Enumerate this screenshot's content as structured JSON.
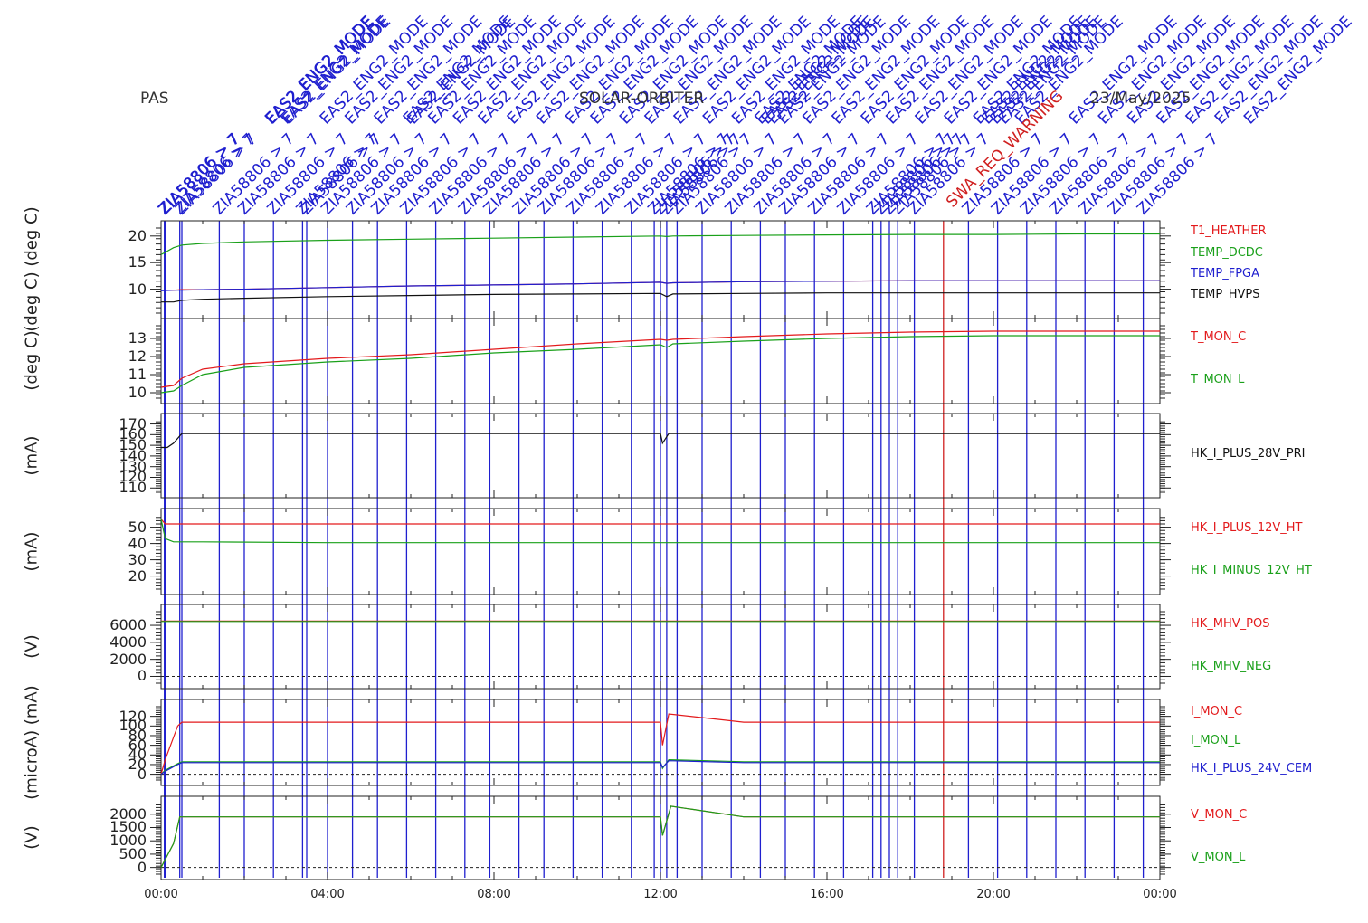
{
  "header": {
    "instrument": "PAS",
    "mission": "SOLAR-ORBITER",
    "date": "23/May/2025"
  },
  "event_label_texts": {
    "cmd": "ZIA58806 > 7",
    "mode": "EAS2_ENG2_MODE",
    "warning": "SWA_REQ_WARNING"
  },
  "colors": {
    "red": "#e31a1c",
    "green": "#1aa01a",
    "blue": "#1f1fcf",
    "black": "#111111",
    "event_blue": "#1f1fcf",
    "event_red": "#d02020"
  },
  "chart_data": [
    {
      "type": "line",
      "panel": "temperatures",
      "ylabel": "(deg C) (deg C)",
      "yticks": [
        10,
        15,
        20
      ],
      "ylim": [
        5.5,
        21.5
      ],
      "x_hours": [
        0.0,
        0.3,
        0.5,
        1,
        2,
        4,
        6,
        8,
        10,
        12,
        12.15,
        12.3,
        14,
        16,
        18,
        20,
        22,
        24
      ],
      "series": [
        {
          "name": "T1_HEATHER",
          "color": "red",
          "values": [
            9.8,
            9.8,
            9.9,
            9.9,
            10.0,
            10.3,
            10.6,
            10.8,
            11.0,
            11.3,
            11.1,
            11.2,
            11.4,
            11.5,
            11.6,
            11.6,
            11.6,
            11.6
          ]
        },
        {
          "name": "TEMP_DCDC",
          "color": "green",
          "values": [
            16.5,
            17.8,
            18.3,
            18.6,
            18.9,
            19.2,
            19.4,
            19.6,
            19.8,
            20.0,
            19.9,
            20.0,
            20.1,
            20.2,
            20.3,
            20.3,
            20.4,
            20.4
          ]
        },
        {
          "name": "TEMP_FPGA",
          "color": "blue",
          "values": [
            9.7,
            9.8,
            9.8,
            9.9,
            10.0,
            10.3,
            10.6,
            10.8,
            11.0,
            11.3,
            11.1,
            11.2,
            11.4,
            11.5,
            11.6,
            11.6,
            11.6,
            11.6
          ]
        },
        {
          "name": "TEMP_HVPS",
          "color": "black",
          "values": [
            7.6,
            7.6,
            7.9,
            8.1,
            8.3,
            8.6,
            8.8,
            9.0,
            9.1,
            9.2,
            8.6,
            9.1,
            9.2,
            9.3,
            9.3,
            9.3,
            9.3,
            9.3
          ]
        }
      ]
    },
    {
      "type": "line",
      "panel": "sensor-temperatures",
      "ylabel": "(deg C)",
      "yticks": [
        10,
        11,
        12,
        13
      ],
      "ylim": [
        9.7,
        13.7
      ],
      "x_hours": [
        0.0,
        0.3,
        0.5,
        1,
        2,
        4,
        6,
        8,
        10,
        12,
        12.15,
        12.3,
        14,
        16,
        18,
        20,
        22,
        24
      ],
      "series": [
        {
          "name": "T_MON_C",
          "color": "red",
          "values": [
            10.3,
            10.4,
            10.8,
            11.3,
            11.6,
            11.9,
            12.1,
            12.4,
            12.7,
            12.95,
            12.9,
            12.95,
            13.1,
            13.25,
            13.35,
            13.4,
            13.4,
            13.4
          ]
        },
        {
          "name": "T_MON_L",
          "color": "green",
          "values": [
            10.0,
            10.1,
            10.4,
            11.0,
            11.4,
            11.7,
            11.9,
            12.2,
            12.4,
            12.65,
            12.5,
            12.7,
            12.85,
            13.0,
            13.1,
            13.15,
            13.15,
            13.15
          ]
        }
      ]
    },
    {
      "type": "line",
      "panel": "primary-current",
      "ylabel": "(mA)",
      "yticks": [
        110,
        120,
        130,
        140,
        150,
        160,
        170
      ],
      "ylim": [
        106,
        173
      ],
      "x_hours": [
        0.0,
        0.15,
        0.3,
        0.5,
        2,
        6,
        10,
        12,
        12.05,
        12.2,
        14,
        18,
        24
      ],
      "series": [
        {
          "name": "HK_I_PLUS_28V_PRI",
          "color": "black",
          "values": [
            148,
            148,
            152,
            161,
            161,
            161,
            161,
            161,
            152,
            161,
            161,
            161,
            161
          ]
        }
      ]
    },
    {
      "type": "line",
      "panel": "heater-currents",
      "ylabel": "(mA)",
      "yticks": [
        20,
        30,
        40,
        50
      ],
      "ylim": [
        12,
        57
      ],
      "x_hours": [
        0.0,
        0.1,
        0.3,
        1,
        4,
        8,
        12,
        12.2,
        14,
        18,
        24
      ],
      "series": [
        {
          "name": "HK_I_PLUS_12V_HT",
          "color": "red",
          "values": [
            55,
            52,
            52,
            52,
            52,
            52,
            52,
            52,
            52,
            52,
            52
          ]
        },
        {
          "name": "HK_I_MINUS_12V_HT",
          "color": "green",
          "values": [
            55,
            43,
            41,
            41,
            40.5,
            40.5,
            40.5,
            40.5,
            40.5,
            40.5,
            40.5
          ]
        }
      ]
    },
    {
      "type": "line",
      "panel": "mcp-high-voltage",
      "ylabel": "(V)",
      "yticks": [
        0,
        2000,
        4000,
        6000
      ],
      "ylim": [
        -800,
        7600
      ],
      "x_hours": [
        0.0,
        24.0
      ],
      "series": [
        {
          "name": "HK_MHV_POS",
          "color": "red",
          "values": [
            6500,
            6500
          ]
        },
        {
          "name": "HK_MHV_NEG",
          "color": "green",
          "values": [
            6450,
            6450
          ]
        }
      ]
    },
    {
      "type": "line",
      "panel": "monitor-currents",
      "ylabel": "(microA) (mA)",
      "yticks": [
        0,
        20,
        40,
        60,
        80,
        100,
        120
      ],
      "ylim": [
        -12,
        140
      ],
      "x_hours": [
        0.0,
        0.1,
        0.4,
        0.5,
        2,
        4,
        8,
        12,
        12.05,
        12.2,
        14,
        18,
        24
      ],
      "series": [
        {
          "name": "I_MON_C",
          "color": "red",
          "values": [
            0,
            30,
            100,
            108,
            108,
            108,
            108,
            108,
            60,
            125,
            108,
            108,
            108
          ]
        },
        {
          "name": "I_MON_L",
          "color": "green",
          "values": [
            0,
            8,
            22,
            26,
            26,
            26,
            26,
            26,
            12,
            30,
            26,
            26,
            26
          ]
        },
        {
          "name": "HK_I_PLUS_24V_CEM",
          "color": "blue",
          "values": [
            0,
            6,
            20,
            24,
            24,
            24,
            24,
            24,
            14,
            28,
            24,
            24,
            24
          ]
        }
      ]
    },
    {
      "type": "line",
      "panel": "monitor-voltages",
      "ylabel": "(V)",
      "yticks": [
        0,
        500,
        1000,
        1500,
        2000
      ],
      "ylim": [
        -250,
        2400
      ],
      "x_hours": [
        0.0,
        0.3,
        0.45,
        2,
        6,
        12,
        12.05,
        12.25,
        14,
        18,
        24
      ],
      "series": [
        {
          "name": "V_MON_C",
          "color": "red",
          "values": [
            0,
            900,
            1900,
            1900,
            1900,
            1900,
            1200,
            2300,
            1900,
            1900,
            1900
          ]
        },
        {
          "name": "V_MON_L",
          "color": "green",
          "values": [
            0,
            900,
            1900,
            1900,
            1900,
            1900,
            1200,
            2300,
            1900,
            1900,
            1900
          ]
        }
      ]
    }
  ],
  "x_axis": {
    "range_hours": [
      0,
      24
    ],
    "ticks": [
      "00:00",
      "04:00",
      "08:00",
      "12:00",
      "16:00",
      "20:00",
      "00:00"
    ]
  },
  "event_markers": {
    "blue_hours": [
      0.08,
      0.1,
      0.45,
      0.5,
      1.4,
      2.0,
      2.7,
      3.4,
      3.5,
      4.0,
      4.6,
      5.2,
      5.9,
      6.6,
      7.3,
      7.9,
      8.6,
      9.2,
      9.9,
      10.6,
      11.3,
      11.85,
      12.0,
      12.15,
      12.4,
      13.0,
      13.7,
      14.4,
      15.0,
      15.7,
      16.4,
      17.1,
      17.3,
      17.5,
      17.7,
      18.1,
      19.4,
      20.1,
      20.8,
      21.5,
      22.2,
      22.9,
      23.6
    ],
    "red_hours": [
      18.8
    ]
  }
}
